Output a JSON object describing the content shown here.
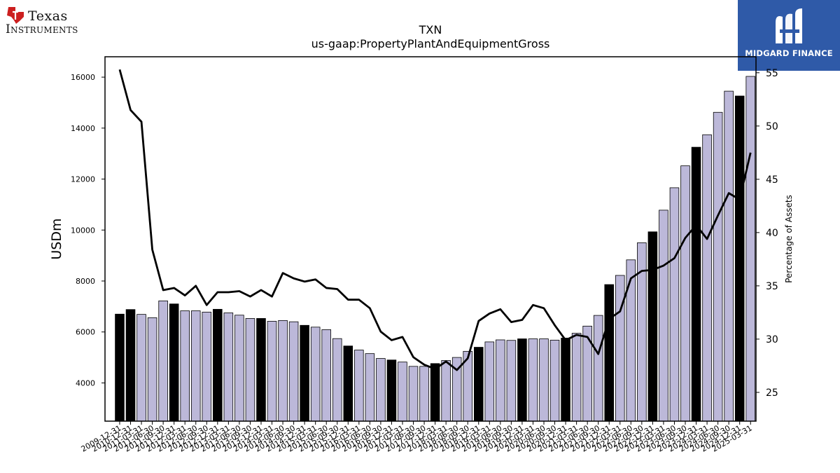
{
  "header": {
    "brand_line1": "Texas",
    "brand_line2": "Instruments",
    "sponsor": "MIDGARD FINANCE"
  },
  "chart_data": {
    "type": "bar",
    "title": "TXN",
    "subtitle": "us-gaap:PropertyPlantAndEquipmentGross",
    "ylabel": "USDm",
    "y2label": "Percentage of Assets",
    "ylim": [
      2500,
      16800
    ],
    "y2lim": [
      22.3,
      56.5
    ],
    "yticks": [
      4000,
      6000,
      8000,
      10000,
      12000,
      14000,
      16000
    ],
    "y2ticks": [
      25,
      30,
      35,
      40,
      45,
      50,
      55
    ],
    "colors": {
      "bar_quarter": "#bcb8d9",
      "bar_annual": "#000000",
      "line": "#000000"
    },
    "categories": [
      "2009-12-31",
      "2010-12-31",
      "2011-03-31",
      "2011-06-30",
      "2011-09-30",
      "2011-12-31",
      "2012-03-31",
      "2012-06-30",
      "2012-09-30",
      "2012-12-31",
      "2013-03-31",
      "2013-06-30",
      "2013-09-30",
      "2013-12-31",
      "2014-03-31",
      "2014-06-30",
      "2014-09-30",
      "2014-12-31",
      "2015-03-31",
      "2015-06-30",
      "2015-09-30",
      "2015-12-31",
      "2016-03-31",
      "2016-06-30",
      "2016-09-30",
      "2016-12-31",
      "2017-03-31",
      "2017-06-30",
      "2017-09-30",
      "2017-12-31",
      "2018-03-31",
      "2018-06-30",
      "2018-09-30",
      "2018-12-31",
      "2019-03-31",
      "2019-06-30",
      "2019-09-30",
      "2019-12-31",
      "2020-03-31",
      "2020-06-30",
      "2020-09-30",
      "2020-12-31",
      "2021-03-31",
      "2021-06-30",
      "2021-09-30",
      "2021-12-31",
      "2022-03-31",
      "2022-06-30",
      "2022-09-30",
      "2022-12-31",
      "2023-03-31",
      "2023-06-30",
      "2023-09-30",
      "2023-12-31",
      "2024-03-31",
      "2024-06-30",
      "2024-09-30",
      "2024-12-31",
      "2025-03-31"
    ],
    "annual": [
      true,
      true,
      false,
      false,
      false,
      true,
      false,
      false,
      false,
      true,
      false,
      false,
      false,
      true,
      false,
      false,
      false,
      true,
      false,
      false,
      false,
      true,
      false,
      false,
      false,
      true,
      false,
      false,
      false,
      true,
      false,
      false,
      false,
      true,
      false,
      false,
      false,
      true,
      false,
      false,
      false,
      true,
      false,
      false,
      false,
      true,
      false,
      false,
      false,
      true,
      false,
      false,
      false,
      true,
      false,
      false,
      false,
      true,
      false
    ],
    "series": [
      {
        "name": "USDm",
        "axis": "left",
        "values": [
          6700,
          6880,
          6690,
          6560,
          7220,
          7100,
          6830,
          6830,
          6780,
          6890,
          6750,
          6660,
          6530,
          6530,
          6420,
          6450,
          6400,
          6260,
          6190,
          6090,
          5740,
          5450,
          5290,
          5150,
          4960,
          4900,
          4820,
          4650,
          4650,
          4760,
          4880,
          5000,
          5240,
          5400,
          5610,
          5690,
          5670,
          5730,
          5730,
          5730,
          5680,
          5760,
          5950,
          6230,
          6650,
          7860,
          8220,
          8830,
          9500,
          9930,
          10780,
          11660,
          12520,
          13250,
          13740,
          14620,
          15450,
          15260,
          16030
        ]
      },
      {
        "name": "Percentage of Assets",
        "axis": "right",
        "values": [
          55.3,
          51.5,
          50.4,
          38.4,
          34.6,
          34.8,
          34.1,
          35.0,
          33.2,
          34.4,
          34.4,
          34.5,
          34.0,
          34.6,
          34.0,
          36.2,
          35.7,
          35.4,
          35.6,
          34.8,
          34.7,
          33.7,
          33.7,
          32.9,
          30.7,
          29.9,
          30.2,
          28.3,
          27.6,
          27.2,
          27.9,
          27.1,
          28.2,
          31.7,
          32.4,
          32.8,
          31.6,
          31.8,
          33.2,
          32.9,
          31.3,
          29.9,
          30.4,
          30.2,
          28.6,
          31.9,
          32.6,
          35.7,
          36.4,
          36.5,
          36.9,
          37.6,
          39.5,
          40.7,
          39.4,
          41.6,
          43.7,
          43.1,
          47.5
        ]
      }
    ]
  }
}
